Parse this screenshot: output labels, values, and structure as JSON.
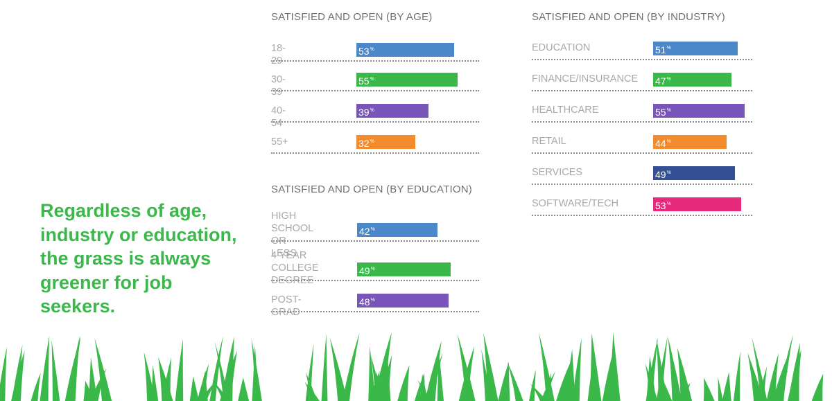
{
  "headline": "Regardless of age, industry or education, the grass is always greener for job seekers.",
  "colors": {
    "blue": "#4a88c9",
    "green": "#3bb84a",
    "purple": "#7a55b9",
    "orange": "#f28a2e",
    "navy": "#354f94",
    "pink": "#e6297b",
    "grass": "#3bb84a"
  },
  "chart_data": [
    {
      "type": "bar",
      "title": "SATISFIED AND OPEN (BY AGE)",
      "categories": [
        "18-29",
        "30-39",
        "40-54",
        "55+"
      ],
      "values": [
        53,
        55,
        39,
        32
      ],
      "value_labels": [
        "53",
        "55",
        "39",
        "32"
      ],
      "unit": "%",
      "bar_colors": [
        "blue",
        "green",
        "purple",
        "orange"
      ]
    },
    {
      "type": "bar",
      "title": "SATISFIED AND OPEN (BY EDUCATION)",
      "categories": [
        "HIGH SCHOOL\nOR LESS",
        "4 YEAR COLLEGE\nDEGREE",
        "POST-GRAD"
      ],
      "values": [
        42,
        49,
        48
      ],
      "value_labels": [
        "42",
        "49",
        "48"
      ],
      "unit": "%",
      "bar_colors": [
        "blue",
        "green",
        "purple"
      ]
    },
    {
      "type": "bar",
      "title": "SATISFIED AND OPEN (BY INDUSTRY)",
      "categories": [
        "EDUCATION",
        "FINANCE/INSURANCE",
        "HEALTHCARE",
        "RETAIL",
        "SERVICES",
        "SOFTWARE/TECH"
      ],
      "values": [
        51,
        47,
        55,
        44,
        49,
        53
      ],
      "value_labels": [
        "51",
        "47",
        "55",
        "44",
        "49",
        "53"
      ],
      "unit": "%",
      "bar_colors": [
        "blue",
        "green",
        "purple",
        "orange",
        "navy",
        "pink"
      ]
    }
  ]
}
